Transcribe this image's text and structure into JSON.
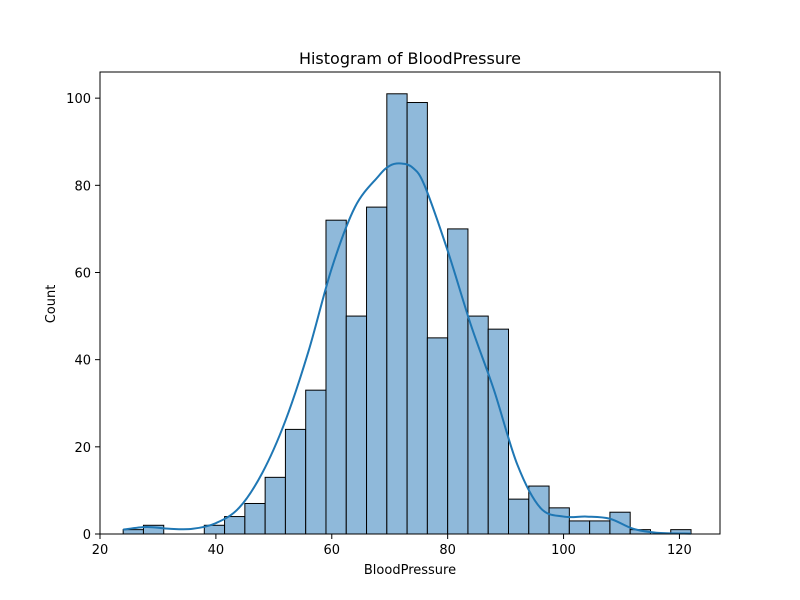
{
  "chart_data": {
    "type": "bar",
    "title": "Histogram of BloodPressure",
    "xlabel": "BloodPressure",
    "ylabel": "Count",
    "xlim": [
      20,
      127
    ],
    "ylim": [
      0,
      106
    ],
    "xticks": [
      20,
      40,
      60,
      80,
      100,
      120
    ],
    "yticks": [
      0,
      20,
      40,
      60,
      80,
      100
    ],
    "bin_edges": [
      24,
      27.5,
      31,
      34.5,
      38,
      41.5,
      45,
      48.5,
      52,
      55.5,
      59,
      62.5,
      66,
      69.5,
      73,
      76.5,
      80,
      83.5,
      87,
      90.5,
      94,
      97.5,
      101,
      104.5,
      108,
      111.5,
      115,
      118.5,
      122
    ],
    "counts": [
      1,
      2,
      0,
      0,
      2,
      4,
      7,
      13,
      24,
      33,
      72,
      50,
      75,
      101,
      99,
      45,
      70,
      50,
      47,
      8,
      11,
      6,
      3,
      3,
      5,
      1,
      0,
      1
    ],
    "kde": {
      "x": [
        24,
        28,
        32,
        36,
        40,
        44,
        48,
        52,
        56,
        60,
        64,
        68,
        70,
        72,
        74,
        76,
        80,
        84,
        88,
        92,
        96,
        100,
        104,
        108,
        112,
        116,
        122
      ],
      "y": [
        1,
        1.6,
        1.2,
        1.2,
        2.5,
        6,
        14,
        26,
        42,
        61,
        75,
        82,
        84.5,
        85,
        84,
        80,
        65,
        48,
        33,
        16,
        6,
        4,
        4,
        3.5,
        1.2,
        0.3,
        0.1
      ]
    },
    "grid": false,
    "colors": {
      "bar_fill": "#8fb9da",
      "bar_edge": "#000000",
      "kde_line": "#1f77b4"
    }
  }
}
